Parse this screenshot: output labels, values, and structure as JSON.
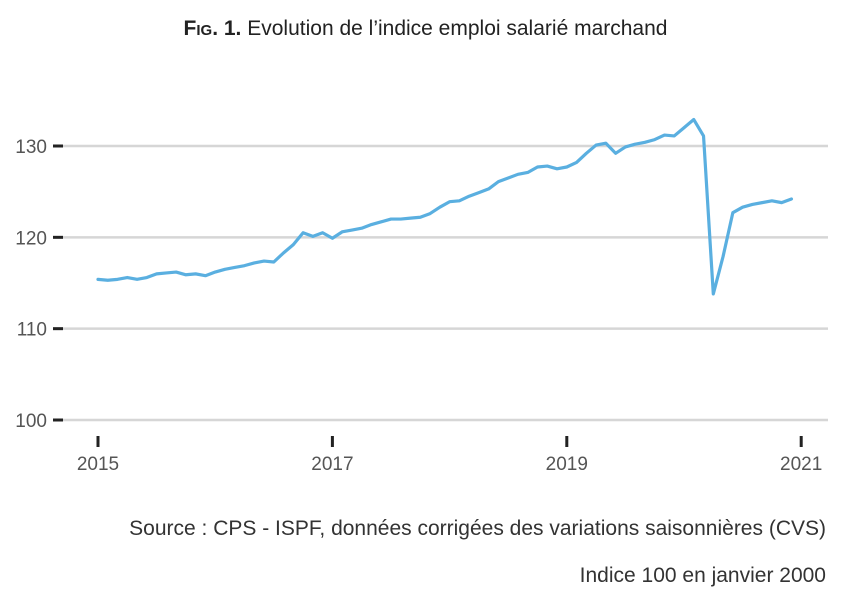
{
  "title": {
    "fig_label": "Fig. 1.",
    "text": "Evolution de l’indice emploi salarié marchand"
  },
  "source": "Source : CPS - ISPF, données corrigées des variations saisonnières (CVS)",
  "note": "Indice 100 en janvier 2000",
  "chart_data": {
    "type": "line",
    "title": "Evolution de l’indice emploi salarié marchand",
    "xlabel": "",
    "ylabel": "",
    "frequency": "monthly",
    "x": [
      "2015-01",
      "2015-02",
      "2015-03",
      "2015-04",
      "2015-05",
      "2015-06",
      "2015-07",
      "2015-08",
      "2015-09",
      "2015-10",
      "2015-11",
      "2015-12",
      "2016-01",
      "2016-02",
      "2016-03",
      "2016-04",
      "2016-05",
      "2016-06",
      "2016-07",
      "2016-08",
      "2016-09",
      "2016-10",
      "2016-11",
      "2016-12",
      "2017-01",
      "2017-02",
      "2017-03",
      "2017-04",
      "2017-05",
      "2017-06",
      "2017-07",
      "2017-08",
      "2017-09",
      "2017-10",
      "2017-11",
      "2017-12",
      "2018-01",
      "2018-02",
      "2018-03",
      "2018-04",
      "2018-05",
      "2018-06",
      "2018-07",
      "2018-08",
      "2018-09",
      "2018-10",
      "2018-11",
      "2018-12",
      "2019-01",
      "2019-02",
      "2019-03",
      "2019-04",
      "2019-05",
      "2019-06",
      "2019-07",
      "2019-08",
      "2019-09",
      "2019-10",
      "2019-11",
      "2019-12",
      "2020-01",
      "2020-02",
      "2020-03",
      "2020-04",
      "2020-05",
      "2020-06",
      "2020-07",
      "2020-08",
      "2020-09",
      "2020-10",
      "2020-11",
      "2020-12"
    ],
    "series": [
      {
        "values": [
          115.4,
          115.3,
          115.4,
          115.6,
          115.4,
          115.6,
          116.0,
          116.1,
          116.2,
          115.9,
          116.0,
          115.8,
          116.2,
          116.5,
          116.7,
          116.9,
          117.2,
          117.4,
          117.3,
          118.3,
          119.2,
          120.5,
          120.1,
          120.5,
          119.9,
          120.6,
          120.8,
          121.0,
          121.4,
          121.7,
          122.0,
          122.0,
          122.1,
          122.2,
          122.6,
          123.3,
          123.9,
          124.0,
          124.5,
          124.9,
          125.3,
          126.1,
          126.5,
          126.9,
          127.1,
          127.7,
          127.8,
          127.5,
          127.7,
          128.2,
          129.2,
          130.1,
          130.3,
          129.2,
          129.9,
          130.2,
          130.4,
          130.7,
          131.2,
          131.1,
          132.0,
          132.9,
          131.1,
          113.8,
          117.9,
          122.7,
          123.3,
          123.6,
          123.8,
          124.0,
          123.8,
          124.2
        ],
        "color": "#5aafe0"
      }
    ],
    "xticks": [
      "2015",
      "2017",
      "2019",
      "2021"
    ],
    "yticks": [
      "100",
      "110",
      "120",
      "130"
    ],
    "xlim": [
      "2015-01",
      "2021-01"
    ],
    "ylim": [
      100,
      130
    ],
    "grid": "horizontal",
    "grid_color": "#d6d6d6",
    "legend": "none"
  }
}
